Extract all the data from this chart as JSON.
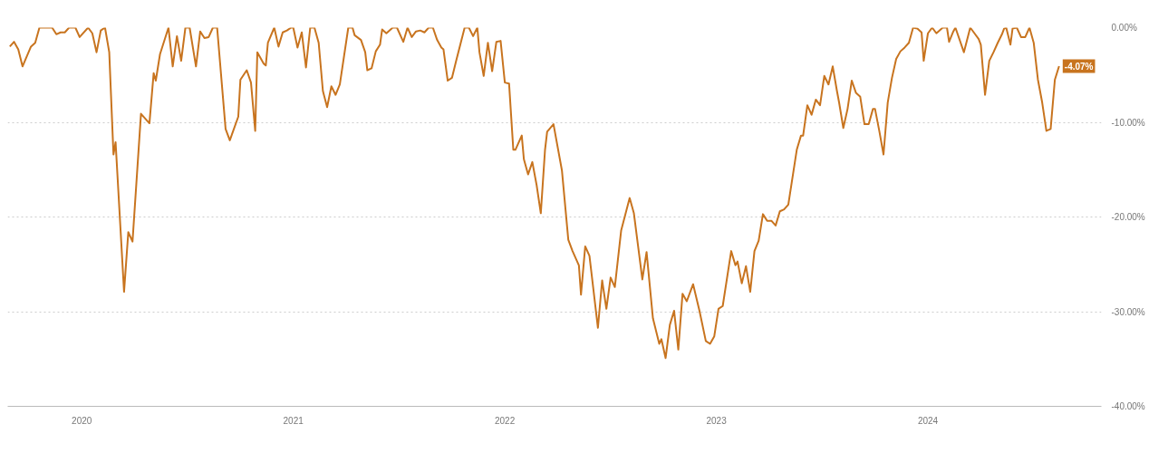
{
  "chart_data": {
    "type": "line",
    "color": "#c8741f",
    "x": [
      2019.66,
      2019.68,
      2019.7,
      2019.72,
      2019.76,
      2019.78,
      2019.8,
      2019.86,
      2019.88,
      2019.9,
      2019.92,
      2019.94,
      2019.97,
      2019.99,
      2020.03,
      2020.05,
      2020.07,
      2020.09,
      2020.11,
      2020.13,
      2020.15,
      2020.16,
      2020.2,
      2020.22,
      2020.24,
      2020.28,
      2020.32,
      2020.34,
      2020.35,
      2020.37,
      2020.41,
      2020.43,
      2020.45,
      2020.47,
      2020.49,
      2020.51,
      2020.54,
      2020.56,
      2020.58,
      2020.6,
      2020.62,
      2020.64,
      2020.68,
      2020.7,
      2020.74,
      2020.75,
      2020.78,
      2020.8,
      2020.82,
      2020.83,
      2020.86,
      2020.87,
      2020.88,
      2020.91,
      2020.93,
      2020.95,
      2020.97,
      2020.99,
      2021.0,
      2021.02,
      2021.04,
      2021.06,
      2021.08,
      2021.1,
      2021.12,
      2021.14,
      2021.16,
      2021.18,
      2021.2,
      2021.22,
      2021.26,
      2021.28,
      2021.29,
      2021.32,
      2021.34,
      2021.35,
      2021.37,
      2021.39,
      2021.41,
      2021.42,
      2021.44,
      2021.47,
      2021.49,
      2021.52,
      2021.54,
      2021.56,
      2021.58,
      2021.6,
      2021.62,
      2021.64,
      2021.66,
      2021.68,
      2021.7,
      2021.71,
      2021.73,
      2021.75,
      2021.77,
      2021.81,
      2021.83,
      2021.85,
      2021.87,
      2021.88,
      2021.9,
      2021.92,
      2021.94,
      2021.96,
      2021.98,
      2022.0,
      2022.02,
      2022.04,
      2022.05,
      2022.08,
      2022.09,
      2022.11,
      2022.13,
      2022.15,
      2022.17,
      2022.19,
      2022.2,
      2022.23,
      2022.27,
      2022.3,
      2022.32,
      2022.35,
      2022.36,
      2022.38,
      2022.4,
      2022.44,
      2022.46,
      2022.48,
      2022.5,
      2022.52,
      2022.55,
      2022.59,
      2022.61,
      2022.65,
      2022.67,
      2022.7,
      2022.73,
      2022.74,
      2022.76,
      2022.78,
      2022.8,
      2022.82,
      2022.84,
      2022.86,
      2022.89,
      2022.92,
      2022.95,
      2022.97,
      2022.99,
      2023.01,
      2023.03,
      2023.07,
      2023.09,
      2023.1,
      2023.12,
      2023.14,
      2023.16,
      2023.18,
      2023.2,
      2023.22,
      2023.24,
      2023.26,
      2023.28,
      2023.3,
      2023.32,
      2023.34,
      2023.38,
      2023.4,
      2023.41,
      2023.43,
      2023.45,
      2023.47,
      2023.49,
      2023.51,
      2023.53,
      2023.55,
      2023.57,
      2023.58,
      2023.6,
      2023.62,
      2023.64,
      2023.66,
      2023.68,
      2023.7,
      2023.72,
      2023.74,
      2023.75,
      2023.77,
      2023.79,
      2023.81,
      2023.83,
      2023.85,
      2023.87,
      2023.89,
      2023.91,
      2023.93,
      2023.95,
      2023.97,
      2023.98,
      2024.0,
      2024.02,
      2024.04,
      2024.07,
      2024.09,
      2024.1,
      2024.12,
      2024.13,
      2024.17,
      2024.2,
      2024.22,
      2024.24,
      2024.25,
      2024.27,
      2024.29,
      2024.31,
      2024.33,
      2024.35,
      2024.36,
      2024.37,
      2024.39,
      2024.4,
      2024.42,
      2024.44,
      2024.46,
      2024.48,
      2024.5,
      2024.52,
      2024.54,
      2024.56,
      2024.58,
      2024.6,
      2024.62
    ],
    "values": [
      -2.0,
      -1.5,
      -2.3,
      -4.1,
      -2.0,
      -1.6,
      0,
      0,
      -0.7,
      -0.5,
      -0.5,
      0,
      0,
      -1.0,
      0,
      -0.6,
      -2.6,
      -0.3,
      0,
      -2.6,
      -13.4,
      -12.1,
      -27.9,
      -21.6,
      -22.6,
      -9.1,
      -10.1,
      -4.8,
      -5.6,
      -2.8,
      0,
      -4.1,
      -0.9,
      -3.5,
      0,
      0,
      -4.1,
      -0.4,
      -1.1,
      -1.0,
      0,
      0,
      -10.7,
      -11.9,
      -9.4,
      -5.5,
      -4.5,
      -5.8,
      -10.9,
      -2.6,
      -3.8,
      -4.0,
      -1.6,
      0,
      -2.0,
      -0.5,
      -0.3,
      0,
      0,
      -2.1,
      -0.5,
      -4.2,
      0,
      0,
      -1.6,
      -6.7,
      -8.4,
      -6.2,
      -7.1,
      -6.0,
      0,
      0,
      -0.8,
      -1.3,
      -2.6,
      -4.5,
      -4.3,
      -2.5,
      -1.8,
      -0.2,
      -0.6,
      0,
      0,
      -1.5,
      0,
      -1.0,
      -0.4,
      -0.3,
      -0.5,
      0,
      0,
      -1.3,
      -2.1,
      -2.3,
      -5.6,
      -5.3,
      -3.5,
      0,
      0,
      -0.9,
      0,
      -2.6,
      -5.1,
      -1.6,
      -4.6,
      -1.5,
      -1.4,
      -5.8,
      -5.9,
      -12.9,
      -12.9,
      -11.4,
      -13.9,
      -15.5,
      -14.2,
      -16.6,
      -19.6,
      -12.9,
      -11.0,
      -10.2,
      -15.1,
      -22.4,
      -23.6,
      -25.1,
      -28.2,
      -23.1,
      -24.1,
      -31.7,
      -26.7,
      -29.7,
      -26.4,
      -27.4,
      -21.4,
      -18.0,
      -19.6,
      -26.6,
      -23.7,
      -30.7,
      -33.4,
      -32.9,
      -34.9,
      -31.4,
      -29.9,
      -34.0,
      -28.1,
      -28.9,
      -27.1,
      -29.9,
      -33.1,
      -33.4,
      -32.6,
      -29.7,
      -29.4,
      -23.6,
      -25.1,
      -24.7,
      -27.0,
      -25.2,
      -27.9,
      -23.6,
      -22.5,
      -19.7,
      -20.4,
      -20.4,
      -20.9,
      -19.4,
      -19.2,
      -18.7,
      -12.9,
      -11.4,
      -11.4,
      -8.2,
      -9.2,
      -7.6,
      -8.2,
      -5.1,
      -6.0,
      -4.1,
      -6.7,
      -7.9,
      -10.6,
      -8.6,
      -5.6,
      -6.9,
      -7.3,
      -10.2,
      -10.2,
      -8.6,
      -8.6,
      -10.9,
      -13.4,
      -7.9,
      -5.3,
      -3.3,
      -2.5,
      -2.1,
      -1.6,
      0,
      -0.1,
      -0.5,
      -3.5,
      -0.6,
      0,
      -0.6,
      0,
      0,
      -1.5,
      -0.4,
      0,
      -2.6,
      0,
      -0.6,
      -1.2,
      -1.8,
      -7.1,
      -3.5,
      -2.6,
      -1.6,
      -0.7,
      -0.1,
      0,
      -1.8,
      -0.1,
      0,
      -1.0,
      -1.0,
      0,
      -1.6,
      -5.5,
      -7.9,
      -10.9,
      -10.7,
      -5.5,
      -4.07
    ],
    "xlim": [
      2019.65,
      2024.82
    ],
    "xticks": [
      2020,
      2021,
      2022,
      2023,
      2024
    ],
    "ylim": [
      -40,
      0
    ],
    "yticks": [
      {
        "value": 0,
        "label": "0.00%"
      },
      {
        "value": -10,
        "label": "-10.00%"
      },
      {
        "value": -20,
        "label": "-20.00%"
      },
      {
        "value": -30,
        "label": "-30.00%"
      },
      {
        "value": -40,
        "label": "-40.00%"
      }
    ],
    "grid": "y",
    "line_style": "solid",
    "marker": "none",
    "annotations": [
      {
        "text": "-4.07%",
        "x": 2024.62,
        "y": -4.07
      }
    ]
  }
}
